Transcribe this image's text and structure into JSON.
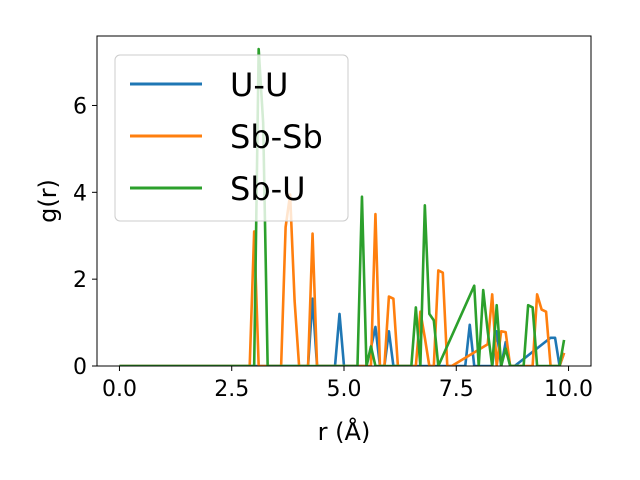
{
  "chart_data": {
    "type": "line",
    "title": "",
    "xlabel": "r (Å)",
    "ylabel": "g(r)",
    "xlim": [
      -0.5,
      10.5
    ],
    "ylim": [
      0,
      7.6
    ],
    "xticks": [
      0.0,
      2.5,
      5.0,
      7.5,
      10.0
    ],
    "xtick_labels": [
      "0.0",
      "2.5",
      "5.0",
      "7.5",
      "10.0"
    ],
    "yticks": [
      0,
      2,
      4,
      6
    ],
    "ytick_labels": [
      "0",
      "2",
      "4",
      "6"
    ],
    "grid": false,
    "legend_position": "upper-left",
    "series": [
      {
        "name": "U-U",
        "color": "#1f77b4",
        "x": [
          0.0,
          4.2,
          4.3,
          4.4,
          4.8,
          4.9,
          5.0,
          5.5,
          5.6,
          5.7,
          5.8,
          5.9,
          6.0,
          6.1,
          6.2,
          7.7,
          7.8,
          7.9,
          8.3,
          8.4,
          8.5,
          8.6,
          8.7,
          8.8,
          9.6,
          9.7,
          9.8,
          9.9
        ],
        "y": [
          0.0,
          0.0,
          1.55,
          0.0,
          0.0,
          1.2,
          0.0,
          0.0,
          0.42,
          0.9,
          0.0,
          0.0,
          0.8,
          0.0,
          0.0,
          0.0,
          0.95,
          0.0,
          0.0,
          0.8,
          0.0,
          0.55,
          0.0,
          0.0,
          0.65,
          0.65,
          0.0,
          0.3
        ]
      },
      {
        "name": "Sb-Sb",
        "color": "#ff7f0e",
        "x": [
          0.0,
          2.9,
          3.0,
          3.1,
          3.6,
          3.7,
          3.8,
          3.9,
          4.0,
          4.2,
          4.3,
          4.4,
          5.5,
          5.6,
          5.7,
          5.8,
          5.9,
          6.0,
          6.1,
          6.2,
          6.6,
          6.7,
          6.8,
          6.9,
          7.0,
          7.1,
          7.2,
          7.3,
          7.4,
          8.2,
          8.3,
          8.4,
          8.5,
          8.6,
          8.7,
          8.8,
          9.2,
          9.3,
          9.4,
          9.5,
          9.6,
          9.7,
          9.8,
          9.9
        ],
        "y": [
          0.0,
          0.0,
          3.1,
          0.0,
          0.0,
          3.2,
          3.95,
          1.5,
          0.0,
          0.0,
          3.05,
          0.0,
          0.0,
          0.0,
          3.5,
          0.0,
          0.0,
          1.6,
          1.55,
          0.0,
          0.0,
          1.25,
          0.65,
          0.0,
          0.0,
          2.2,
          2.15,
          0.0,
          0.0,
          0.5,
          1.65,
          0.0,
          0.8,
          0.78,
          0.0,
          0.0,
          0.0,
          1.65,
          1.3,
          1.25,
          0.0,
          0.0,
          0.0,
          0.3
        ]
      },
      {
        "name": "Sb-U",
        "color": "#2ca02c",
        "x": [
          0.0,
          3.0,
          3.1,
          3.2,
          3.3,
          5.3,
          5.4,
          5.5,
          5.6,
          5.7,
          5.8,
          6.5,
          6.6,
          6.7,
          6.8,
          6.9,
          7.0,
          7.1,
          7.9,
          8.0,
          8.1,
          8.2,
          8.3,
          8.4,
          8.5,
          8.6,
          8.7,
          8.8,
          9.0,
          9.1,
          9.2,
          9.3,
          9.8,
          9.9
        ],
        "y": [
          0.0,
          0.0,
          7.3,
          5.6,
          0.0,
          0.0,
          3.9,
          0.0,
          0.45,
          0.0,
          0.0,
          0.0,
          1.35,
          0.0,
          3.7,
          1.2,
          1.05,
          0.0,
          1.85,
          0.0,
          1.75,
          0.8,
          0.0,
          1.4,
          0.0,
          0.4,
          0.0,
          0.0,
          0.0,
          1.4,
          1.35,
          0.0,
          0.0,
          0.6
        ]
      }
    ]
  }
}
